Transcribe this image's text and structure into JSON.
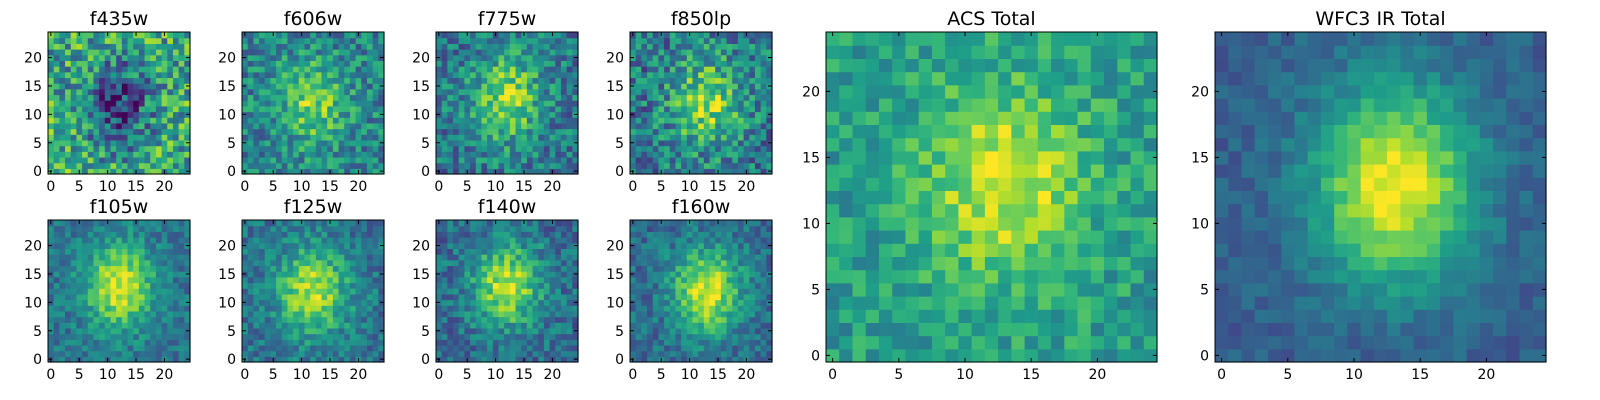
{
  "chart_data": {
    "type": "heatmap",
    "colormap": "viridis",
    "grid": false,
    "image_size": [
      25,
      25
    ],
    "panels": [
      {
        "title": "f435w",
        "xticks": [
          0,
          5,
          10,
          15,
          20
        ],
        "yticks": [
          0,
          5,
          10,
          15,
          20
        ],
        "peak_center": [
          12,
          12
        ],
        "peak_level": 0.2,
        "background_level": 0.6,
        "noise_level": 0.3
      },
      {
        "title": "f606w",
        "xticks": [
          0,
          5,
          10,
          15,
          20
        ],
        "yticks": [
          0,
          5,
          10,
          15,
          20
        ],
        "peak_center": [
          12,
          12
        ],
        "peak_level": 0.8,
        "background_level": 0.45,
        "noise_level": 0.22
      },
      {
        "title": "f775w",
        "xticks": [
          0,
          5,
          10,
          15,
          20
        ],
        "yticks": [
          0,
          5,
          10,
          15,
          20
        ],
        "peak_center": [
          12,
          13
        ],
        "peak_level": 0.85,
        "background_level": 0.4,
        "noise_level": 0.22
      },
      {
        "title": "f850lp",
        "xticks": [
          0,
          5,
          10,
          15,
          20
        ],
        "yticks": [
          0,
          5,
          10,
          15,
          20
        ],
        "peak_center": [
          13,
          12
        ],
        "peak_level": 0.85,
        "background_level": 0.4,
        "noise_level": 0.25
      },
      {
        "title": "f105w",
        "xticks": [
          0,
          5,
          10,
          15,
          20
        ],
        "yticks": [
          0,
          5,
          10,
          15,
          20
        ],
        "peak_center": [
          12,
          13
        ],
        "peak_level": 0.95,
        "background_level": 0.38,
        "noise_level": 0.14
      },
      {
        "title": "f125w",
        "xticks": [
          0,
          5,
          10,
          15,
          20
        ],
        "yticks": [
          0,
          5,
          10,
          15,
          20
        ],
        "peak_center": [
          12,
          12
        ],
        "peak_level": 0.9,
        "background_level": 0.38,
        "noise_level": 0.16
      },
      {
        "title": "f140w",
        "xticks": [
          0,
          5,
          10,
          15,
          20
        ],
        "yticks": [
          0,
          5,
          10,
          15,
          20
        ],
        "peak_center": [
          12,
          13
        ],
        "peak_level": 0.9,
        "background_level": 0.35,
        "noise_level": 0.17
      },
      {
        "title": "f160w",
        "xticks": [
          0,
          5,
          10,
          15,
          20
        ],
        "yticks": [
          0,
          5,
          10,
          15,
          20
        ],
        "peak_center": [
          13,
          12
        ],
        "peak_level": 0.95,
        "background_level": 0.35,
        "noise_level": 0.15
      },
      {
        "title": "ACS Total",
        "xticks": [
          0,
          5,
          10,
          15,
          20
        ],
        "yticks": [
          0,
          5,
          10,
          15,
          20
        ],
        "peak_center": [
          13,
          13
        ],
        "peak_level": 0.95,
        "background_level": 0.55,
        "noise_level": 0.15
      },
      {
        "title": "WFC3 IR Total",
        "xticks": [
          0,
          5,
          10,
          15,
          20
        ],
        "yticks": [
          0,
          5,
          10,
          15,
          20
        ],
        "peak_center": [
          13,
          13
        ],
        "peak_level": 1.0,
        "background_level": 0.3,
        "noise_level": 0.08
      }
    ]
  }
}
